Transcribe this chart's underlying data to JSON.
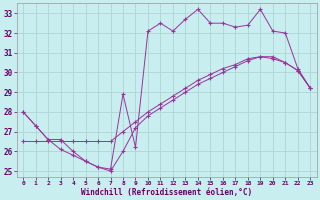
{
  "xlabel": "Windchill (Refroidissement éolien,°C)",
  "bg_color": "#c8eef0",
  "line_color": "#993399",
  "grid_color": "#b0d4d4",
  "xlim": [
    -0.5,
    23.5
  ],
  "ylim": [
    24.7,
    33.5
  ],
  "yticks": [
    25,
    26,
    27,
    28,
    29,
    30,
    31,
    32,
    33
  ],
  "xticks": [
    0,
    1,
    2,
    3,
    4,
    5,
    6,
    7,
    8,
    9,
    10,
    11,
    12,
    13,
    14,
    15,
    16,
    17,
    18,
    19,
    20,
    21,
    22,
    23
  ],
  "series1_x": [
    0,
    1,
    2,
    3,
    4,
    5,
    6,
    7,
    8,
    9,
    10,
    11,
    12,
    13,
    14,
    15,
    16,
    17,
    18,
    19,
    20,
    21,
    22,
    23
  ],
  "series1_y": [
    28.0,
    27.3,
    26.6,
    26.1,
    25.8,
    25.5,
    25.2,
    25.1,
    28.9,
    26.2,
    32.1,
    32.5,
    32.1,
    32.7,
    33.2,
    32.5,
    32.5,
    32.3,
    32.4,
    33.2,
    32.1,
    32.0,
    30.2,
    29.2
  ],
  "series2_x": [
    0,
    1,
    2,
    3,
    4,
    5,
    6,
    7,
    8,
    9,
    10,
    11,
    12,
    13,
    14,
    15,
    16,
    17,
    18,
    19,
    20,
    21,
    22,
    23
  ],
  "series2_y": [
    26.5,
    26.5,
    26.5,
    26.5,
    26.5,
    26.5,
    26.5,
    26.5,
    27.0,
    27.5,
    28.0,
    28.4,
    28.8,
    29.2,
    29.6,
    29.9,
    30.2,
    30.4,
    30.7,
    30.8,
    30.8,
    30.5,
    30.1,
    29.2
  ],
  "series3_x": [
    0,
    1,
    2,
    3,
    4,
    5,
    6,
    7,
    8,
    9,
    10,
    11,
    12,
    13,
    14,
    15,
    16,
    17,
    18,
    19,
    20,
    21,
    22,
    23
  ],
  "series3_y": [
    28.0,
    27.3,
    26.6,
    26.6,
    26.0,
    25.5,
    25.2,
    25.0,
    26.0,
    27.2,
    27.8,
    28.2,
    28.6,
    29.0,
    29.4,
    29.7,
    30.0,
    30.3,
    30.6,
    30.8,
    30.7,
    30.5,
    30.1,
    29.2
  ]
}
